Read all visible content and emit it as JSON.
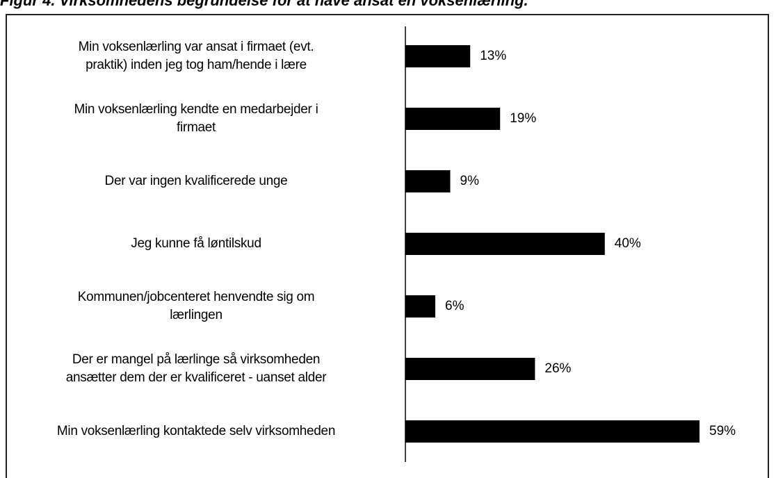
{
  "chart_data": {
    "type": "bar",
    "orientation": "horizontal",
    "title": "Figur 4. Virksomhedens begrundelse for at have ansat en voksenlærling.",
    "categories": [
      "Min voksenlærling var ansat i firmaet (evt.\npraktik) inden jeg tog ham/hende i lære",
      "Min voksenlærling kendte en medarbejder i\nfirmaet",
      "Der var ingen kvalificerede unge",
      "Jeg kunne få løntilskud",
      "Kommunen/jobcenteret henvendte sig om\nlærlingen",
      "Der er mangel på lærlinge  så virksomheden\nansætter dem der er kvalificeret - uanset alder",
      "Min voksenlærling kontaktede selv virksomheden"
    ],
    "values": [
      13,
      19,
      9,
      40,
      6,
      26,
      59
    ],
    "value_labels": [
      "13%",
      "19%",
      "9%",
      "40%",
      "6%",
      "26%",
      "59%"
    ],
    "color": "#000000"
  }
}
